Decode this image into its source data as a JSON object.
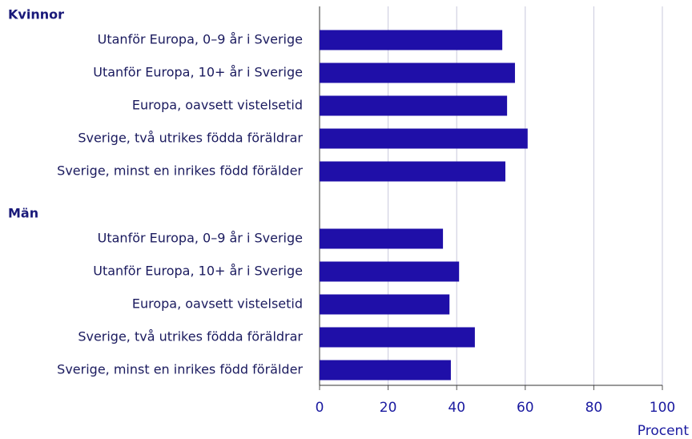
{
  "chart_data": {
    "type": "bar",
    "orientation": "horizontal",
    "groups": [
      {
        "name": "Kvinnor",
        "categories": [
          "Utanför Europa, 0–9 år i Sverige",
          "Utanför Europa, 10+ år i Sverige",
          "Europa, oavsett vistelsetid",
          "Sverige, två utrikes födda föräldrar",
          "Sverige, minst en inrikes född förälder"
        ],
        "values": [
          53.3,
          57,
          54.7,
          60.7,
          54.2
        ]
      },
      {
        "name": "Män",
        "categories": [
          "Utanför Europa, 0–9 år i Sverige",
          "Utanför Europa, 10+ år i Sverige",
          "Europa, oavsett vistelsetid",
          "Sverige, två utrikes födda föräldrar",
          "Sverige, minst en inrikes född förälder"
        ],
        "values": [
          36,
          40.7,
          37.9,
          45.3,
          38.3
        ]
      }
    ],
    "color": "#1f0fa8",
    "xlabel": "Procent",
    "xlim": [
      0,
      100
    ],
    "xticks": [
      0,
      20,
      40,
      60,
      80,
      100
    ],
    "grid": true
  }
}
